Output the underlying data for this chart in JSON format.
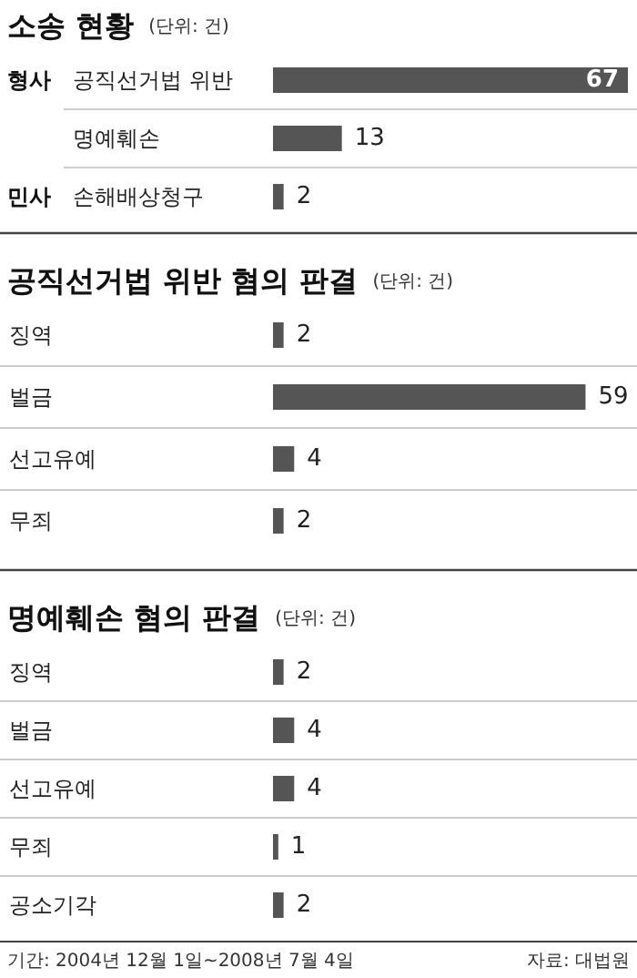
{
  "chart_data": [
    {
      "type": "bar",
      "orientation": "horizontal",
      "title": "소송 현황",
      "subtitle": "(단위: 건)",
      "categories": [
        "공직선거법 위반",
        "명예훼손",
        "손해배상청구"
      ],
      "values": [
        67,
        13,
        2
      ],
      "color": "#555555",
      "data_labels": true,
      "annotations": [
        "형사",
        "민사"
      ]
    },
    {
      "type": "bar",
      "orientation": "horizontal",
      "title": "공직선거법 위반 혐의 판결",
      "subtitle": "(단위: 건)",
      "categories": [
        "징역",
        "벌금",
        "선고유예",
        "무죄"
      ],
      "values": [
        2,
        59,
        4,
        2
      ],
      "color": "#555555",
      "data_labels": true
    },
    {
      "type": "bar",
      "orientation": "horizontal",
      "title": "명예훼손 혐의 판결",
      "subtitle": "(단위: 건)",
      "categories": [
        "징역",
        "벌금",
        "선고유예",
        "무죄",
        "공소기각"
      ],
      "values": [
        2,
        4,
        4,
        1,
        2
      ],
      "color": "#555555",
      "data_labels": true,
      "annotations": [
        "기간: 2004년 12월 1일~2008년 7월 4일",
        "자료: 대법원"
      ]
    }
  ]
}
